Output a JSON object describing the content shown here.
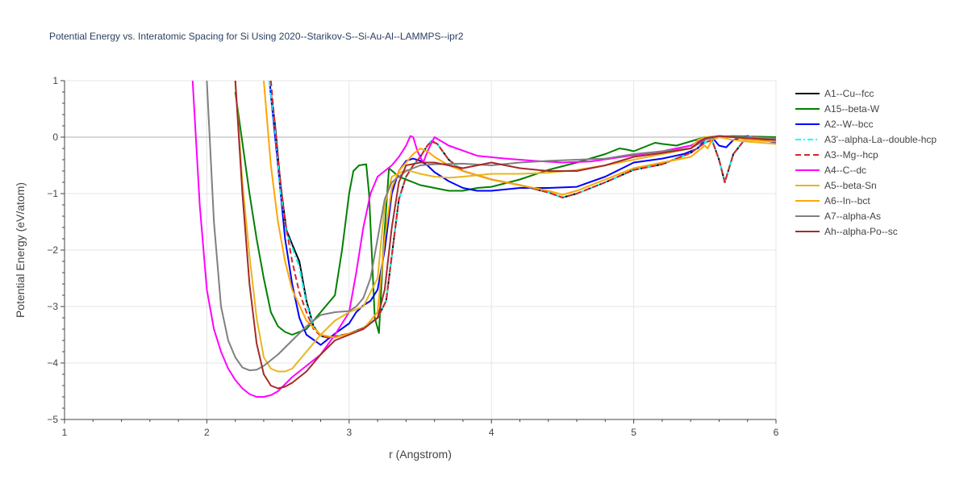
{
  "chart_data": {
    "type": "line",
    "title": "Potential Energy vs. Interatomic Spacing for Si Using 2020--Starikov-S--Si-Au-Al--LAMMPS--ipr2",
    "xlabel": "r (Angstrom)",
    "ylabel": "Potential Energy (eV/atom)",
    "xlim": [
      1,
      6
    ],
    "ylim": [
      -5,
      1
    ],
    "xticks": [
      "1",
      "2",
      "3",
      "4",
      "5",
      "6"
    ],
    "yticks": [
      "1",
      "0",
      "−1",
      "−2",
      "−3",
      "−4",
      "−5"
    ],
    "grid": true,
    "legend_position": "right",
    "series": [
      {
        "name": "A1--Cu--fcc",
        "color": "#000000",
        "dash": "solid",
        "x": [
          2.44,
          2.48,
          2.52,
          2.56,
          2.6,
          2.65,
          2.7,
          2.75,
          2.8,
          2.85,
          2.9,
          3.0,
          3.1,
          3.2,
          3.26,
          3.3,
          3.35,
          3.4,
          3.45,
          3.5,
          3.55,
          3.58,
          3.62,
          3.7,
          3.8,
          4.0,
          4.2,
          4.4,
          4.5,
          4.6,
          4.8,
          5.0,
          5.2,
          5.4,
          5.5,
          5.55,
          5.6,
          5.64,
          5.7,
          5.8,
          6.0
        ],
        "y": [
          1.0,
          0.2,
          -0.9,
          -1.65,
          -1.9,
          -2.2,
          -2.9,
          -3.35,
          -3.52,
          -3.55,
          -3.53,
          -3.48,
          -3.38,
          -3.2,
          -2.9,
          -2.1,
          -1.1,
          -0.7,
          -0.5,
          -0.35,
          -0.15,
          -0.07,
          -0.12,
          -0.4,
          -0.6,
          -0.75,
          -0.85,
          -0.98,
          -1.07,
          -1.0,
          -0.8,
          -0.58,
          -0.48,
          -0.28,
          -0.1,
          -0.05,
          -0.4,
          -0.8,
          -0.3,
          0.02,
          -0.05
        ]
      },
      {
        "name": "A15--beta-W",
        "color": "#008000",
        "dash": "solid",
        "x": [
          2.2,
          2.25,
          2.3,
          2.35,
          2.4,
          2.45,
          2.5,
          2.55,
          2.6,
          2.7,
          2.8,
          2.9,
          2.95,
          3.0,
          3.03,
          3.07,
          3.12,
          3.14,
          3.18,
          3.21,
          3.24,
          3.28,
          3.35,
          3.5,
          3.7,
          3.8,
          3.9,
          4.0,
          4.2,
          4.4,
          4.6,
          4.8,
          4.9,
          4.95,
          5.0,
          5.1,
          5.15,
          5.2,
          5.3,
          5.5,
          5.7,
          6.0
        ],
        "y": [
          0.8,
          -0.1,
          -1.0,
          -1.8,
          -2.5,
          -3.1,
          -3.35,
          -3.45,
          -3.5,
          -3.4,
          -3.1,
          -2.8,
          -2.0,
          -1.0,
          -0.6,
          -0.5,
          -0.48,
          -1.0,
          -3.2,
          -3.47,
          -2.0,
          -0.55,
          -0.7,
          -0.85,
          -0.95,
          -0.95,
          -0.9,
          -0.88,
          -0.75,
          -0.58,
          -0.45,
          -0.3,
          -0.2,
          -0.22,
          -0.25,
          -0.15,
          -0.1,
          -0.12,
          -0.15,
          0.0,
          0.02,
          0.0
        ]
      },
      {
        "name": "A2--W--bcc",
        "color": "#0000ff",
        "dash": "solid",
        "x": [
          2.44,
          2.5,
          2.55,
          2.6,
          2.65,
          2.7,
          2.8,
          2.9,
          3.0,
          3.05,
          3.1,
          3.15,
          3.2,
          3.25,
          3.3,
          3.35,
          3.4,
          3.45,
          3.5,
          3.55,
          3.6,
          3.7,
          3.8,
          3.9,
          4.0,
          4.2,
          4.4,
          4.6,
          4.8,
          5.0,
          5.2,
          5.35,
          5.45,
          5.5,
          5.55,
          5.6,
          5.65,
          5.7,
          5.8,
          6.0
        ],
        "y": [
          1.0,
          -0.5,
          -1.8,
          -2.6,
          -3.2,
          -3.5,
          -3.68,
          -3.48,
          -3.3,
          -3.1,
          -2.98,
          -2.9,
          -2.7,
          -2.0,
          -1.0,
          -0.6,
          -0.42,
          -0.38,
          -0.42,
          -0.5,
          -0.62,
          -0.78,
          -0.9,
          -0.95,
          -0.95,
          -0.9,
          -0.9,
          -0.88,
          -0.7,
          -0.45,
          -0.38,
          -0.3,
          -0.2,
          -0.05,
          0.0,
          -0.15,
          -0.18,
          -0.05,
          0.02,
          -0.1
        ]
      },
      {
        "name": "A3'--alpha-La--double-hcp",
        "color": "#00ffff",
        "dash": "dashdot",
        "x": [
          2.44,
          2.48,
          2.52,
          2.56,
          2.6,
          2.65,
          2.7,
          2.75,
          2.8,
          2.85,
          2.9,
          3.0,
          3.1,
          3.2,
          3.26,
          3.3,
          3.35,
          3.4,
          3.45,
          3.5,
          3.55,
          3.58,
          3.62,
          3.7,
          3.8,
          4.0,
          4.2,
          4.4,
          4.5,
          4.6,
          4.8,
          5.0,
          5.2,
          5.4,
          5.5,
          5.55,
          5.6,
          5.64,
          5.7,
          5.8,
          6.0
        ],
        "y": [
          1.0,
          0.1,
          -1.0,
          -1.7,
          -1.95,
          -2.3,
          -2.95,
          -3.35,
          -3.52,
          -3.55,
          -3.53,
          -3.48,
          -3.38,
          -3.2,
          -2.9,
          -2.1,
          -1.1,
          -0.7,
          -0.5,
          -0.35,
          -0.15,
          -0.08,
          -0.12,
          -0.4,
          -0.6,
          -0.75,
          -0.85,
          -0.98,
          -1.07,
          -1.0,
          -0.8,
          -0.58,
          -0.48,
          -0.28,
          -0.1,
          -0.05,
          -0.4,
          -0.8,
          -0.3,
          0.02,
          -0.05
        ]
      },
      {
        "name": "A3--Mg--hcp",
        "color": "#d62728",
        "dash": "dash",
        "x": [
          2.45,
          2.5,
          2.55,
          2.6,
          2.65,
          2.7,
          2.75,
          2.8,
          2.85,
          2.9,
          3.0,
          3.1,
          3.2,
          3.26,
          3.3,
          3.35,
          3.4,
          3.45,
          3.5,
          3.55,
          3.58,
          3.62,
          3.7,
          3.8,
          4.0,
          4.2,
          4.4,
          4.5,
          4.6,
          4.8,
          5.0,
          5.2,
          5.4,
          5.5,
          5.55,
          5.6,
          5.64,
          5.7,
          5.8,
          6.0
        ],
        "y": [
          1.0,
          -0.4,
          -1.5,
          -2.2,
          -2.75,
          -3.1,
          -3.4,
          -3.52,
          -3.55,
          -3.53,
          -3.48,
          -3.38,
          -3.2,
          -2.9,
          -2.1,
          -1.1,
          -0.7,
          -0.5,
          -0.35,
          -0.15,
          -0.08,
          -0.12,
          -0.4,
          -0.6,
          -0.75,
          -0.85,
          -0.98,
          -1.07,
          -1.0,
          -0.8,
          -0.58,
          -0.48,
          -0.28,
          -0.1,
          -0.05,
          -0.4,
          -0.8,
          -0.3,
          0.02,
          -0.05
        ]
      },
      {
        "name": "A4--C--dc",
        "color": "#ff00ff",
        "dash": "solid",
        "x": [
          1.9,
          1.95,
          2.0,
          2.05,
          2.1,
          2.15,
          2.2,
          2.25,
          2.3,
          2.35,
          2.4,
          2.45,
          2.5,
          2.6,
          2.7,
          2.8,
          2.9,
          3.0,
          3.05,
          3.1,
          3.15,
          3.2,
          3.25,
          3.3,
          3.35,
          3.4,
          3.43,
          3.45,
          3.48,
          3.52,
          3.56,
          3.6,
          3.7,
          3.9,
          4.1,
          4.3,
          4.5,
          4.7,
          5.0,
          5.2,
          5.4,
          5.5,
          5.6,
          5.7,
          6.0
        ],
        "y": [
          1.0,
          -1.2,
          -2.7,
          -3.4,
          -3.8,
          -4.1,
          -4.3,
          -4.45,
          -4.55,
          -4.6,
          -4.6,
          -4.57,
          -4.5,
          -4.25,
          -4.05,
          -3.85,
          -3.5,
          -3.1,
          -2.4,
          -1.6,
          -1.0,
          -0.7,
          -0.6,
          -0.5,
          -0.35,
          -0.15,
          0.02,
          0.0,
          -0.25,
          -0.45,
          -0.2,
          0.0,
          -0.15,
          -0.33,
          -0.38,
          -0.42,
          -0.45,
          -0.43,
          -0.32,
          -0.25,
          -0.15,
          -0.02,
          0.02,
          0.0,
          -0.05
        ]
      },
      {
        "name": "A5--beta-Sn",
        "color": "#e8b520",
        "dash": "solid",
        "x": [
          2.2,
          2.25,
          2.3,
          2.35,
          2.4,
          2.45,
          2.5,
          2.55,
          2.6,
          2.7,
          2.8,
          2.9,
          3.0,
          3.1,
          3.2,
          3.25,
          3.3,
          3.4,
          3.5,
          3.6,
          3.7,
          3.8,
          4.0,
          4.2,
          4.4,
          4.6,
          4.8,
          5.0,
          5.2,
          5.4,
          5.45,
          5.5,
          5.6,
          5.7,
          5.8,
          5.9,
          6.0
        ],
        "y": [
          1.0,
          -0.8,
          -2.1,
          -3.2,
          -3.9,
          -4.1,
          -4.15,
          -4.15,
          -4.1,
          -3.8,
          -3.5,
          -3.25,
          -3.1,
          -3.0,
          -2.5,
          -1.2,
          -0.7,
          -0.58,
          -0.65,
          -0.7,
          -0.72,
          -0.7,
          -0.65,
          -0.65,
          -0.63,
          -0.58,
          -0.5,
          -0.4,
          -0.3,
          -0.2,
          -0.05,
          0.0,
          0.0,
          -0.05,
          -0.08,
          -0.1,
          -0.12
        ]
      },
      {
        "name": "A6--In--bct",
        "color": "#ffa500",
        "dash": "solid",
        "x": [
          2.4,
          2.45,
          2.5,
          2.55,
          2.6,
          2.7,
          2.8,
          2.9,
          3.0,
          3.1,
          3.2,
          3.25,
          3.3,
          3.35,
          3.4,
          3.45,
          3.5,
          3.55,
          3.6,
          3.7,
          3.8,
          4.0,
          4.2,
          4.4,
          4.5,
          4.6,
          4.8,
          5.0,
          5.2,
          5.4,
          5.5,
          5.52,
          5.55,
          5.6,
          5.7,
          5.8,
          6.0
        ],
        "y": [
          1.0,
          -0.5,
          -1.5,
          -2.2,
          -2.7,
          -3.25,
          -3.5,
          -3.55,
          -3.48,
          -3.4,
          -3.1,
          -1.8,
          -0.9,
          -0.6,
          -0.45,
          -0.3,
          -0.2,
          -0.25,
          -0.35,
          -0.5,
          -0.6,
          -0.75,
          -0.85,
          -0.95,
          -1.02,
          -0.95,
          -0.75,
          -0.55,
          -0.45,
          -0.35,
          -0.15,
          -0.2,
          -0.05,
          0.0,
          0.0,
          -0.05,
          -0.08
        ]
      },
      {
        "name": "A7--alpha-As",
        "color": "#808080",
        "dash": "solid",
        "x": [
          2.0,
          2.05,
          2.1,
          2.15,
          2.2,
          2.25,
          2.3,
          2.35,
          2.4,
          2.5,
          2.6,
          2.7,
          2.8,
          2.9,
          3.0,
          3.05,
          3.1,
          3.15,
          3.2,
          3.25,
          3.3,
          3.4,
          3.5,
          3.6,
          3.8,
          4.0,
          4.2,
          4.4,
          4.6,
          4.8,
          5.0,
          5.2,
          5.4,
          5.5,
          5.6,
          5.8,
          6.0
        ],
        "y": [
          1.0,
          -1.5,
          -3.0,
          -3.6,
          -3.9,
          -4.08,
          -4.13,
          -4.12,
          -4.05,
          -3.85,
          -3.6,
          -3.35,
          -3.15,
          -3.1,
          -3.08,
          -3.0,
          -2.85,
          -2.5,
          -1.8,
          -1.1,
          -0.8,
          -0.6,
          -0.5,
          -0.48,
          -0.47,
          -0.5,
          -0.45,
          -0.42,
          -0.4,
          -0.38,
          -0.3,
          -0.25,
          -0.2,
          -0.05,
          0.02,
          0.0,
          -0.02
        ]
      },
      {
        "name": "Ah--alpha-Po--sc",
        "color": "#a52a2a",
        "dash": "solid",
        "x": [
          2.2,
          2.25,
          2.3,
          2.35,
          2.4,
          2.45,
          2.5,
          2.55,
          2.6,
          2.7,
          2.8,
          2.9,
          3.0,
          3.1,
          3.2,
          3.25,
          3.3,
          3.35,
          3.4,
          3.5,
          3.6,
          3.7,
          3.8,
          3.9,
          4.0,
          4.2,
          4.4,
          4.6,
          4.8,
          5.0,
          5.2,
          5.4,
          5.5,
          5.6,
          5.7,
          5.8,
          6.0
        ],
        "y": [
          1.0,
          -1.0,
          -2.6,
          -3.65,
          -4.2,
          -4.4,
          -4.45,
          -4.42,
          -4.35,
          -4.15,
          -3.85,
          -3.6,
          -3.5,
          -3.4,
          -3.2,
          -2.7,
          -1.6,
          -0.8,
          -0.5,
          -0.45,
          -0.45,
          -0.5,
          -0.55,
          -0.5,
          -0.45,
          -0.55,
          -0.6,
          -0.6,
          -0.5,
          -0.35,
          -0.28,
          -0.2,
          -0.02,
          0.02,
          0.0,
          -0.02,
          -0.05
        ]
      }
    ]
  }
}
